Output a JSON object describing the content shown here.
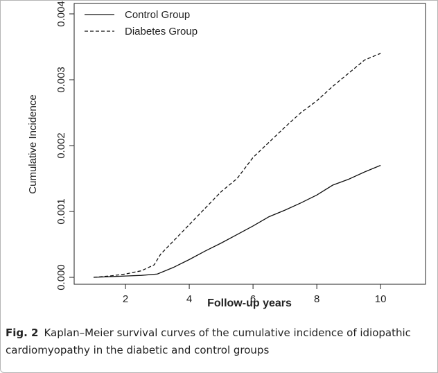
{
  "chart_data": {
    "type": "line",
    "y_label": "Cumulative Incidence",
    "x_label": "Follow-up years",
    "xlim": [
      0.39,
      11.41
    ],
    "xticks": [
      2,
      4,
      6,
      8,
      10
    ],
    "ylim": [
      -0.000105,
      0.004158
    ],
    "yticks": [
      {
        "value": 0,
        "label": "0.000"
      },
      0.001,
      0.002,
      0.003,
      0.004
    ],
    "legend": "top-left",
    "series": [
      {
        "name": "Control Group",
        "color": "#111111",
        "linestyle": "solid",
        "x": [
          1,
          1.5,
          2,
          2.5,
          3,
          3.5,
          4,
          4.5,
          5,
          5.5,
          6,
          6.5,
          7,
          7.5,
          8,
          8.5,
          9,
          9.5,
          10
        ],
        "values": [
          0,
          1e-05,
          2e-05,
          3e-05,
          5e-05,
          0.00015,
          0.00027,
          0.0004,
          0.00052,
          0.00065,
          0.00078,
          0.00092,
          0.00102,
          0.00113,
          0.00125,
          0.0014,
          0.00149,
          0.0016,
          0.0017
        ]
      },
      {
        "name": "Diabetes Group",
        "color": "#111111",
        "linestyle": "dashed",
        "x": [
          1,
          1.5,
          2,
          2.5,
          2.9,
          3.1,
          3.5,
          4,
          4.5,
          5,
          5.5,
          6,
          6.5,
          7,
          7.5,
          8,
          8.5,
          9,
          9.5,
          10
        ],
        "values": [
          0,
          2e-05,
          5e-05,
          0.0001,
          0.00019,
          0.00035,
          0.00055,
          0.0008,
          0.00105,
          0.0013,
          0.0015,
          0.00182,
          0.00205,
          0.00228,
          0.0025,
          0.00268,
          0.0029,
          0.0031,
          0.0033,
          0.0034
        ]
      }
    ],
    "caption_label": "Fig. 2",
    "caption_text": "Kaplan–Meier survival curves of the cumulative incidence of idiopathic cardiomyopathy in the diabetic and control groups"
  }
}
